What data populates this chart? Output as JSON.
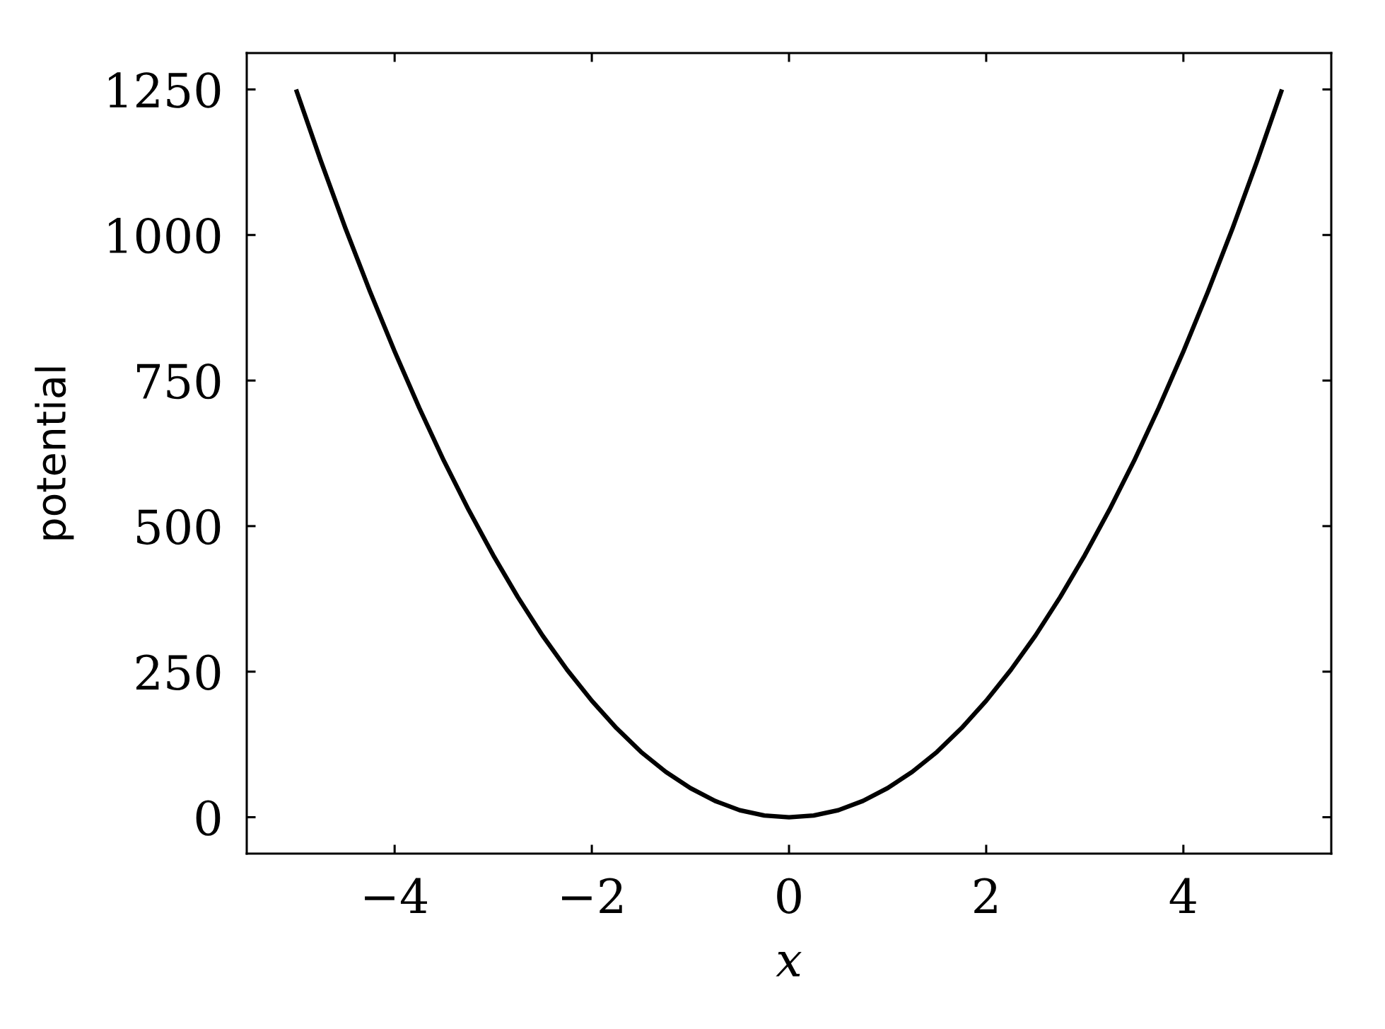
{
  "chart_data": {
    "type": "line",
    "xlabel": "x",
    "ylabel": "potential",
    "x": [
      -5,
      -4.75,
      -4.5,
      -4.25,
      -4,
      -3.75,
      -3.5,
      -3.25,
      -3,
      -2.75,
      -2.5,
      -2.25,
      -2,
      -1.75,
      -1.5,
      -1.25,
      -1,
      -0.75,
      -0.5,
      -0.25,
      0,
      0.25,
      0.5,
      0.75,
      1,
      1.25,
      1.5,
      1.75,
      2,
      2.25,
      2.5,
      2.75,
      3,
      3.25,
      3.5,
      3.75,
      4,
      4.25,
      4.5,
      4.75,
      5
    ],
    "series": [
      {
        "color": "#000000",
        "values": [
          1250,
          1128,
          1012,
          903,
          800,
          703,
          612,
          528,
          450,
          378,
          312,
          253,
          200,
          153,
          112,
          78,
          50,
          28,
          12,
          3,
          0,
          3,
          12,
          28,
          50,
          78,
          112,
          153,
          200,
          253,
          312,
          378,
          450,
          528,
          612,
          703,
          800,
          903,
          1012,
          1128,
          1250
        ]
      }
    ],
    "xlim": [
      -5.5,
      5.5
    ],
    "ylim": [
      -62.5,
      1312.5
    ],
    "xticks": [
      {
        "value": -4,
        "label": "−4"
      },
      {
        "value": -2,
        "label": "−2"
      },
      0,
      2,
      4
    ],
    "yticks": [
      0,
      250,
      500,
      750,
      1000,
      1250
    ]
  }
}
